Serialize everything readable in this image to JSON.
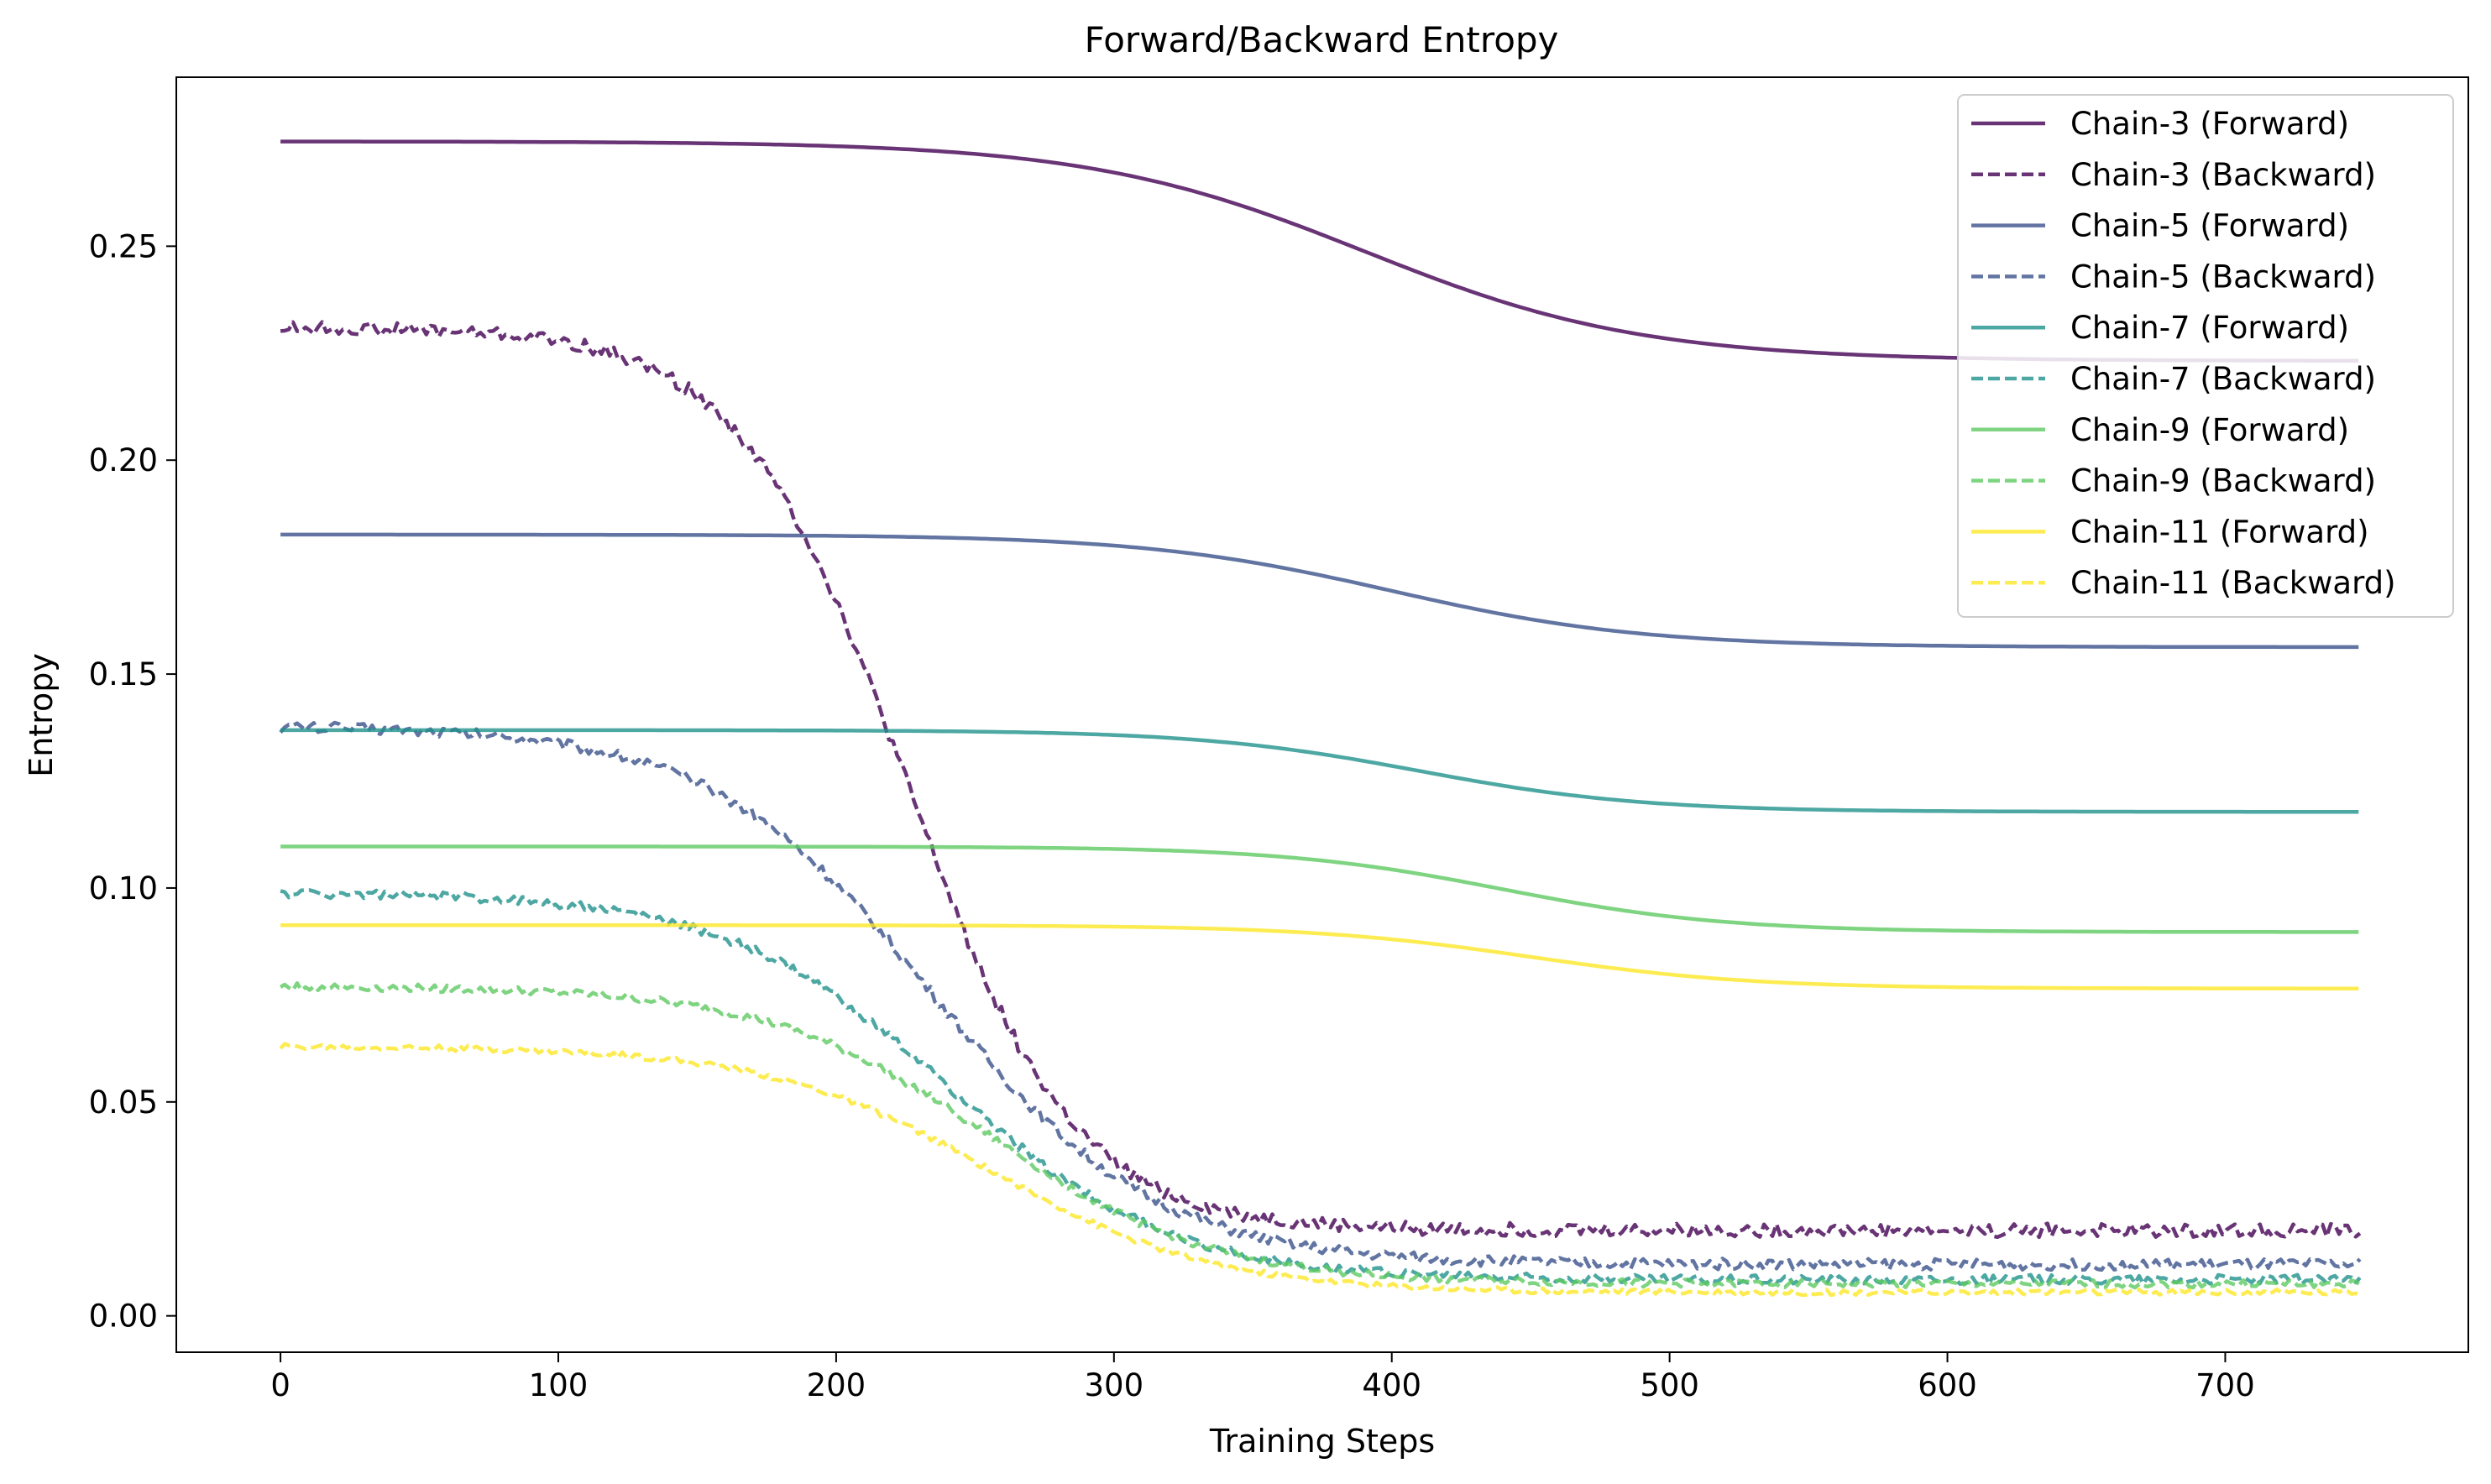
{
  "chart_data": {
    "type": "line",
    "title": "Forward/Backward Entropy",
    "xlabel": "Training Steps",
    "ylabel": "Entropy",
    "xlim": [
      -37.5,
      787.5
    ],
    "ylim": [
      -0.0085,
      0.2895
    ],
    "xticks": [
      0,
      100,
      200,
      300,
      400,
      500,
      600,
      700
    ],
    "xtick_labels": [
      "0",
      "100",
      "200",
      "300",
      "400",
      "500",
      "600",
      "700"
    ],
    "yticks": [
      0.0,
      0.05,
      0.1,
      0.15,
      0.2,
      0.25
    ],
    "ytick_labels": [
      "0.00",
      "0.05",
      "0.10",
      "0.15",
      "0.20",
      "0.25"
    ],
    "grid": false,
    "legend_position": "top-right",
    "series": [
      {
        "name": "Chain-3 (Forward)",
        "color": "#440154",
        "style": "solid",
        "noise": 0,
        "start": 0.2745,
        "end": 0.2232,
        "mid": 390,
        "width": 50,
        "x": [
          0,
          100,
          200,
          250,
          300,
          350,
          400,
          450,
          500,
          550,
          600,
          650,
          700,
          749
        ],
        "y": [
          0.2745,
          0.274,
          0.272,
          0.2685,
          0.2633,
          0.2555,
          0.2445,
          0.2335,
          0.2275,
          0.2248,
          0.2237,
          0.2234,
          0.2233,
          0.2232
        ]
      },
      {
        "name": "Chain-3 (Backward)",
        "color": "#440154",
        "style": "dashed",
        "noise": 0.0016,
        "start": 0.231,
        "end": 0.02,
        "mid": 225,
        "width": 30,
        "x": [
          0,
          50,
          100,
          150,
          175,
          200,
          225,
          250,
          275,
          300,
          325,
          350,
          400,
          450,
          500,
          600,
          749
        ],
        "y": [
          0.231,
          0.2295,
          0.226,
          0.212,
          0.198,
          0.177,
          0.146,
          0.113,
          0.086,
          0.062,
          0.046,
          0.034,
          0.025,
          0.021,
          0.02,
          0.02,
          0.02
        ]
      },
      {
        "name": "Chain-5 (Forward)",
        "color": "#3b528b",
        "style": "solid",
        "noise": 0,
        "start": 0.1826,
        "end": 0.1563,
        "mid": 400,
        "width": 45,
        "x": [
          0,
          100,
          200,
          300,
          350,
          400,
          450,
          500,
          550,
          600,
          700,
          749
        ],
        "y": [
          0.1826,
          0.1825,
          0.1818,
          0.178,
          0.1745,
          0.169,
          0.1635,
          0.1595,
          0.1575,
          0.1567,
          0.1564,
          0.1563
        ]
      },
      {
        "name": "Chain-5 (Backward)",
        "color": "#3b528b",
        "style": "dashed",
        "noise": 0.0013,
        "start": 0.138,
        "end": 0.012,
        "mid": 235,
        "width": 40,
        "x": [
          0,
          50,
          100,
          150,
          200,
          250,
          300,
          350,
          400,
          450,
          500,
          600,
          749
        ],
        "y": [
          0.138,
          0.1375,
          0.134,
          0.123,
          0.1,
          0.067,
          0.04,
          0.024,
          0.016,
          0.013,
          0.012,
          0.012,
          0.012
        ]
      },
      {
        "name": "Chain-7 (Forward)",
        "color": "#21918c",
        "style": "solid",
        "noise": 0,
        "start": 0.1369,
        "end": 0.1178,
        "mid": 410,
        "width": 40,
        "x": [
          0,
          100,
          200,
          300,
          350,
          400,
          450,
          500,
          600,
          700,
          749
        ],
        "y": [
          0.1369,
          0.1368,
          0.136,
          0.1335,
          0.1305,
          0.1265,
          0.1225,
          0.1195,
          0.1181,
          0.1178,
          0.1178
        ]
      },
      {
        "name": "Chain-7 (Backward)",
        "color": "#21918c",
        "style": "dashed",
        "noise": 0.0011,
        "start": 0.099,
        "end": 0.0085,
        "mid": 240,
        "width": 40,
        "x": [
          0,
          100,
          150,
          200,
          250,
          300,
          350,
          400,
          450,
          500,
          600,
          749
        ],
        "y": [
          0.099,
          0.0975,
          0.093,
          0.078,
          0.053,
          0.03,
          0.016,
          0.011,
          0.009,
          0.0085,
          0.0085,
          0.0085
        ]
      },
      {
        "name": "Chain-9 (Forward)",
        "color": "#5ec962",
        "style": "solid",
        "noise": 0,
        "start": 0.1097,
        "end": 0.0897,
        "mid": 440,
        "width": 40,
        "x": [
          0,
          100,
          200,
          300,
          350,
          400,
          450,
          500,
          550,
          600,
          700,
          749
        ],
        "y": [
          0.1097,
          0.1096,
          0.1092,
          0.1075,
          0.1058,
          0.1025,
          0.0985,
          0.0945,
          0.0915,
          0.0902,
          0.0898,
          0.0897
        ]
      },
      {
        "name": "Chain-9 (Backward)",
        "color": "#5ec962",
        "style": "dashed",
        "noise": 0.0009,
        "start": 0.077,
        "end": 0.0075,
        "mid": 255,
        "width": 40,
        "x": [
          0,
          100,
          150,
          200,
          250,
          300,
          350,
          400,
          450,
          500,
          600,
          749
        ],
        "y": [
          0.077,
          0.0755,
          0.072,
          0.064,
          0.045,
          0.026,
          0.014,
          0.0095,
          0.008,
          0.0075,
          0.0075,
          0.0075
        ]
      },
      {
        "name": "Chain-11 (Forward)",
        "color": "#fde725",
        "style": "solid",
        "noise": 0,
        "start": 0.0913,
        "end": 0.0765,
        "mid": 450,
        "width": 40,
        "x": [
          0,
          100,
          200,
          300,
          350,
          400,
          450,
          500,
          550,
          600,
          700,
          749
        ],
        "y": [
          0.0913,
          0.0912,
          0.0905,
          0.0885,
          0.0865,
          0.084,
          0.0808,
          0.0785,
          0.0772,
          0.0767,
          0.0765,
          0.0765
        ]
      },
      {
        "name": "Chain-11 (Backward)",
        "color": "#fde725",
        "style": "dashed",
        "noise": 0.0007,
        "start": 0.063,
        "end": 0.0055,
        "mid": 255,
        "width": 40,
        "x": [
          0,
          100,
          150,
          200,
          250,
          300,
          350,
          400,
          450,
          500,
          600,
          749
        ],
        "y": [
          0.063,
          0.062,
          0.059,
          0.051,
          0.036,
          0.021,
          0.011,
          0.0075,
          0.006,
          0.0055,
          0.0055,
          0.0055
        ]
      }
    ]
  }
}
